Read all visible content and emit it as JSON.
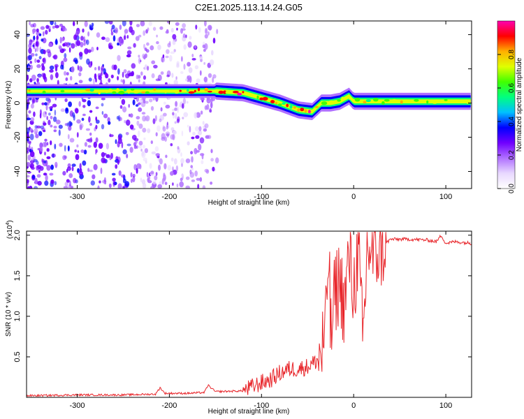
{
  "title": "C2E1.2025.113.14.24.G05",
  "chart_data": [
    {
      "type": "heatmap",
      "title": "C2E1.2025.113.14.24.G05",
      "xlabel": "Height of straight line (km)",
      "ylabel": "Frequency (Hz)",
      "xlim": [
        -355,
        128
      ],
      "ylim": [
        -50,
        48
      ],
      "xticks": [
        -300,
        -200,
        -100,
        0,
        100
      ],
      "yticks": [
        -40,
        -20,
        0,
        20,
        40
      ],
      "colorbar": {
        "label": "Normalized spectral amplitude",
        "range": [
          0,
          1
        ],
        "ticks": [
          0.0,
          0.2,
          0.4,
          0.6,
          0.8
        ],
        "tick_labels": [
          "0.0",
          "0.2",
          "0.4",
          "0.6",
          "0.8"
        ],
        "colormap": [
          "#ffffff",
          "#e8d8ff",
          "#b070ff",
          "#7000ff",
          "#0000ff",
          "#00c0ff",
          "#00ff80",
          "#40ff00",
          "#e0ff00",
          "#ffb000",
          "#ff0000",
          "#ff00b0"
        ]
      },
      "ridge": {
        "x": [
          -355,
          -300,
          -250,
          -200,
          -150,
          -120,
          -100,
          -80,
          -60,
          -45,
          -35,
          -25,
          -15,
          -5,
          0,
          20,
          60,
          100,
          128
        ],
        "freq": [
          7,
          7,
          7,
          7,
          7,
          6,
          3,
          0,
          -4,
          -5,
          0,
          0,
          1,
          4,
          1,
          1,
          1,
          1,
          1
        ]
      },
      "noise_region": {
        "x_from": -355,
        "x_to": -148
      }
    },
    {
      "type": "line",
      "xlabel": "Height of straight line (km)",
      "ylabel": "SNR (10 * v/v)",
      "multiplier_label": "(x10",
      "multiplier_exp": "4",
      "multiplier_close": ")",
      "xlim": [
        -355,
        128
      ],
      "ylim": [
        0,
        2.05
      ],
      "xticks": [
        -300,
        -200,
        -100,
        0,
        100
      ],
      "yticks": [
        0.5,
        1.0,
        1.5,
        2.0
      ],
      "ytick_labels": [
        "0.5",
        "1.0",
        "1.5",
        "2.0"
      ],
      "series": [
        {
          "color": "#e8252a",
          "x": [
            -355,
            -300,
            -250,
            -215,
            -210,
            -205,
            -180,
            -162,
            -158,
            -150,
            -120,
            -110,
            -100,
            -90,
            -80,
            -70,
            -60,
            -50,
            -40,
            -35,
            -30,
            -27,
            -25,
            -20,
            -15,
            -10,
            -5,
            0,
            5,
            10,
            15,
            20,
            30,
            40,
            60,
            80,
            90,
            95,
            100,
            110,
            128
          ],
          "y": [
            0.02,
            0.03,
            0.03,
            0.04,
            0.12,
            0.05,
            0.05,
            0.06,
            0.15,
            0.07,
            0.08,
            0.13,
            0.18,
            0.22,
            0.3,
            0.35,
            0.35,
            0.38,
            0.45,
            0.55,
            0.85,
            1.93,
            0.7,
            1.3,
            1.45,
            1.1,
            1.75,
            1.3,
            1.85,
            0.6,
            1.9,
            1.75,
            1.85,
            1.95,
            1.95,
            1.94,
            1.92,
            2.0,
            1.9,
            1.92,
            1.9
          ]
        }
      ]
    }
  ]
}
